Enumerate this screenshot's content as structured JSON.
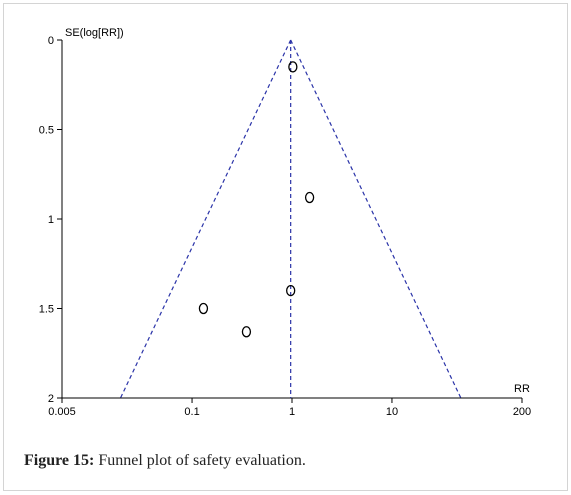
{
  "caption": {
    "label": "Figure 15:",
    "text": "Funnel plot of safety evaluation."
  },
  "chart_data": {
    "type": "scatter",
    "title": "",
    "xlabel": "RR",
    "ylabel": "SE(log[RR])",
    "x_scale": "log",
    "y_inverted": true,
    "xlim": [
      0.005,
      200
    ],
    "ylim": [
      0,
      2
    ],
    "x_ticks": [
      {
        "value": 0.005,
        "label": "0.005"
      },
      {
        "value": 0.1,
        "label": "0.1"
      },
      {
        "value": 1,
        "label": "1"
      },
      {
        "value": 10,
        "label": "10"
      },
      {
        "value": 200,
        "label": "200"
      }
    ],
    "y_ticks": [
      {
        "value": 0,
        "label": "0"
      },
      {
        "value": 0.5,
        "label": "0.5"
      },
      {
        "value": 1,
        "label": "1"
      },
      {
        "value": 1.5,
        "label": "1.5"
      },
      {
        "value": 2,
        "label": "2"
      }
    ],
    "points": [
      {
        "x": 1.02,
        "y": 0.15
      },
      {
        "x": 1.5,
        "y": 0.88
      },
      {
        "x": 0.97,
        "y": 1.4
      },
      {
        "x": 0.13,
        "y": 1.5
      },
      {
        "x": 0.35,
        "y": 1.63
      }
    ],
    "pooled_estimate": 0.97,
    "funnel_limits": "95% pseudo confidence limits",
    "colors": {
      "funnel": "#2a33a8",
      "points": "#000000",
      "axes": "#000000"
    },
    "grid": false
  }
}
